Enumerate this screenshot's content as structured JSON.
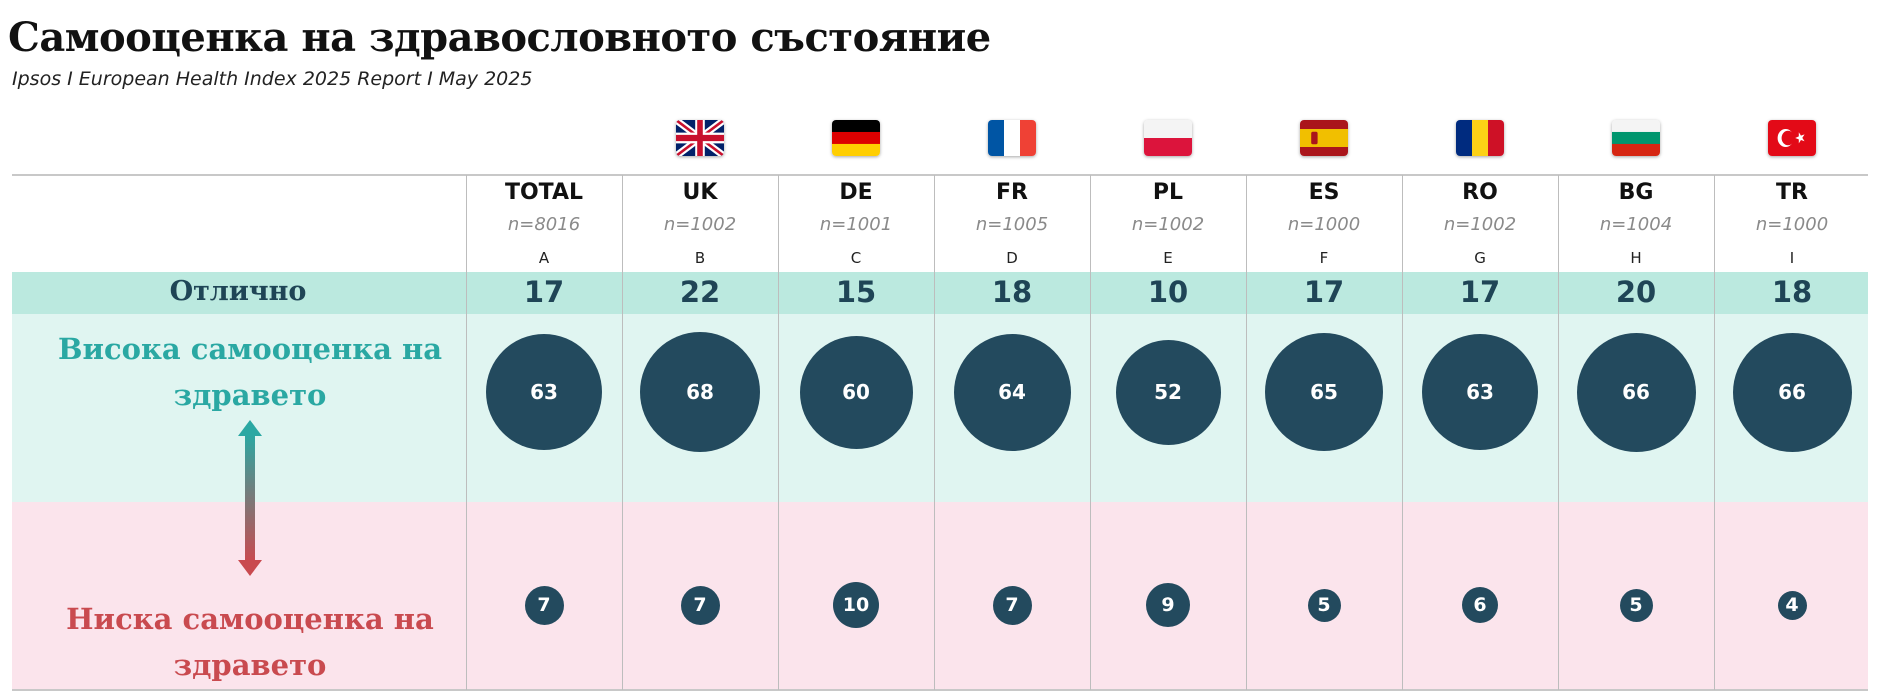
{
  "title": "Самооценка на здравословното състояние",
  "subtitle": "Ipsos I European Health Index 2025 Report I May 2025",
  "rows": {
    "excellent_label": "Отлично",
    "high_label": "Висока самооценка на здравето",
    "low_label": "Ниска самооценка на здравето"
  },
  "colors": {
    "excellent_band": "#bbe9df",
    "high_band": "#e0f5f1",
    "low_band": "#fbe4ec",
    "bubble": "#234a5e",
    "high_text": "#2aa8a3",
    "low_text": "#c94a4f"
  },
  "chart_data": {
    "type": "table",
    "title": "Самооценка на здравословното състояние",
    "columns": [
      {
        "name": "TOTAL",
        "n": "n=8016",
        "letter": "A",
        "flag": "none",
        "excellent": 17,
        "high": 63,
        "low": 7
      },
      {
        "name": "UK",
        "n": "n=1002",
        "letter": "B",
        "flag": "uk-flag-icon",
        "excellent": 22,
        "high": 68,
        "low": 7
      },
      {
        "name": "DE",
        "n": "n=1001",
        "letter": "C",
        "flag": "de-flag-icon",
        "excellent": 15,
        "high": 60,
        "low": 10
      },
      {
        "name": "FR",
        "n": "n=1005",
        "letter": "D",
        "flag": "fr-flag-icon",
        "excellent": 18,
        "high": 64,
        "low": 7
      },
      {
        "name": "PL",
        "n": "n=1002",
        "letter": "E",
        "flag": "pl-flag-icon",
        "excellent": 10,
        "high": 52,
        "low": 9
      },
      {
        "name": "ES",
        "n": "n=1000",
        "letter": "F",
        "flag": "es-flag-icon",
        "excellent": 17,
        "high": 65,
        "low": 5
      },
      {
        "name": "RO",
        "n": "n=1002",
        "letter": "G",
        "flag": "ro-flag-icon",
        "excellent": 17,
        "high": 63,
        "low": 6
      },
      {
        "name": "BG",
        "n": "n=1004",
        "letter": "H",
        "flag": "bg-flag-icon",
        "excellent": 20,
        "high": 66,
        "low": 5
      },
      {
        "name": "TR",
        "n": "n=1000",
        "letter": "I",
        "flag": "tr-flag-icon",
        "excellent": 18,
        "high": 66,
        "low": 4
      }
    ]
  }
}
